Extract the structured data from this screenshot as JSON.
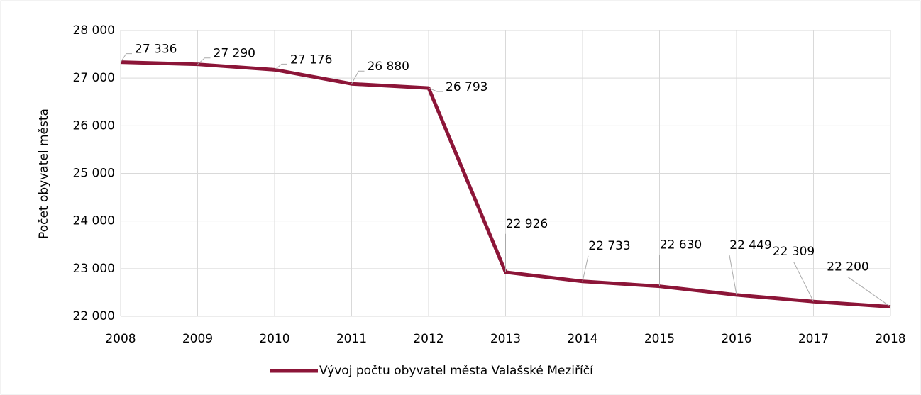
{
  "chart_data": {
    "type": "line",
    "y_axis_label": "Počet obyvatel města",
    "x": [
      2008,
      2009,
      2010,
      2011,
      2012,
      2013,
      2014,
      2015,
      2016,
      2017,
      2018
    ],
    "series": [
      {
        "name": "Vývoj počtu obyvatel města Valašské Meziříčí",
        "color": "#8c1538",
        "values": [
          27336,
          27290,
          27176,
          26880,
          26793,
          22926,
          22733,
          22630,
          22449,
          22309,
          22200
        ],
        "value_labels": [
          "27 336",
          "27 290",
          "27 176",
          "26 880",
          "26 793",
          "22 926",
          "22 733",
          "22 630",
          "22 449",
          "22 309",
          "22 200"
        ]
      }
    ],
    "xlim": [
      2008,
      2018
    ],
    "xticks": [
      2008,
      2009,
      2010,
      2011,
      2012,
      2013,
      2014,
      2015,
      2016,
      2017,
      2018
    ],
    "ylim": [
      22000,
      28000
    ],
    "yticks": [
      {
        "value": 22000,
        "label": "22 000"
      },
      {
        "value": 23000,
        "label": "23 000"
      },
      {
        "value": 24000,
        "label": "24 000"
      },
      {
        "value": 25000,
        "label": "25 000"
      },
      {
        "value": 26000,
        "label": "26 000"
      },
      {
        "value": 27000,
        "label": "27 000"
      },
      {
        "value": 28000,
        "label": "28 000"
      }
    ],
    "grid": true,
    "legend": "bottom"
  }
}
